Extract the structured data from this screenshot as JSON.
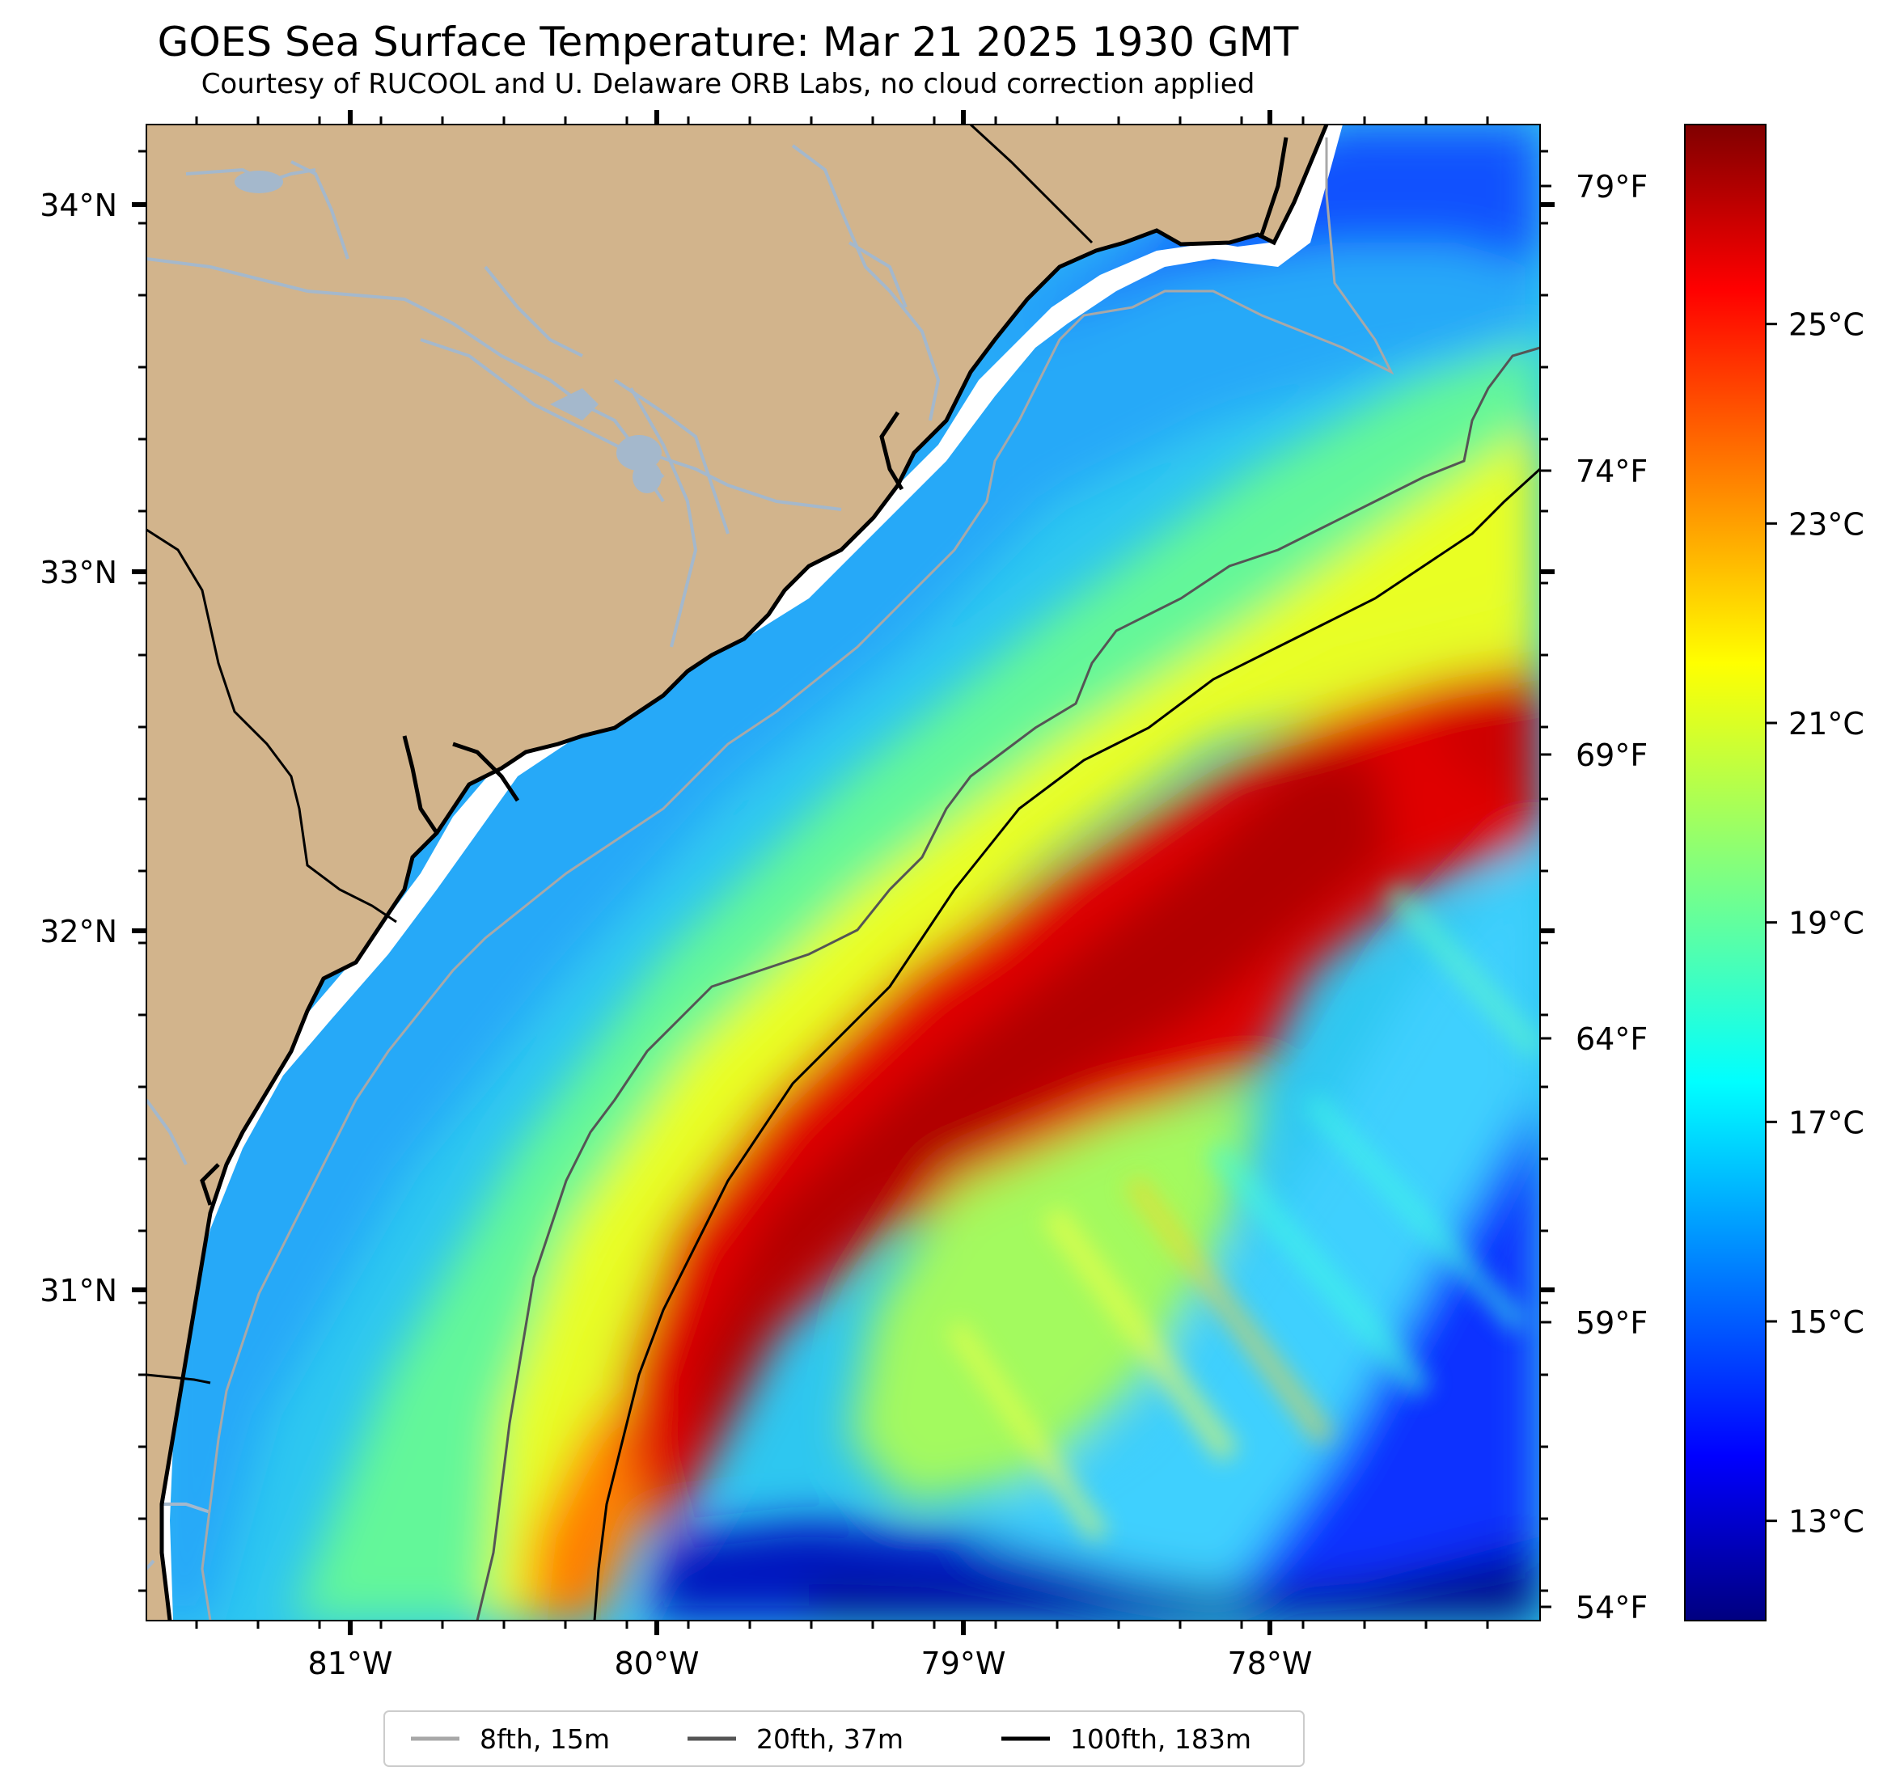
{
  "title": "GOES Sea Surface Temperature: Mar 21 2025 1930 GMT",
  "subtitle": "Courtesy of RUCOOL and U. Delaware ORB Labs, no cloud correction applied",
  "colors": {
    "land": "#d2b48c",
    "river": "#a4b8cc",
    "coast": "#000000",
    "isobath_8fth": "#a8a8a8",
    "isobath_20fth": "#555555",
    "isobath_100fth": "#000000"
  },
  "lat_axis": {
    "labels": [
      "34°N",
      "33°N",
      "32°N",
      "31°N"
    ],
    "values": [
      34,
      33,
      32,
      31
    ]
  },
  "lon_axis": {
    "labels": [
      "81°W",
      "80°W",
      "79°W",
      "78°W"
    ],
    "values": [
      -81,
      -80,
      -79,
      -78
    ]
  },
  "fahrenheit_axis": {
    "labels": [
      "79°F",
      "74°F",
      "69°F",
      "64°F",
      "59°F",
      "54°F"
    ],
    "values": [
      79,
      74,
      69,
      64,
      59,
      54
    ]
  },
  "colorbar": {
    "labels": [
      "25°C",
      "23°C",
      "21°C",
      "19°C",
      "17°C",
      "15°C",
      "13°C"
    ],
    "values": [
      25,
      23,
      21,
      19,
      17,
      15,
      13
    ],
    "min": 12,
    "max": 27,
    "colormap": "jet"
  },
  "legend": [
    {
      "label": "8fth, 15m",
      "color": "#a8a8a8"
    },
    {
      "label": "20fth, 37m",
      "color": "#555555"
    },
    {
      "label": "100fth, 183m",
      "color": "#000000"
    }
  ]
}
